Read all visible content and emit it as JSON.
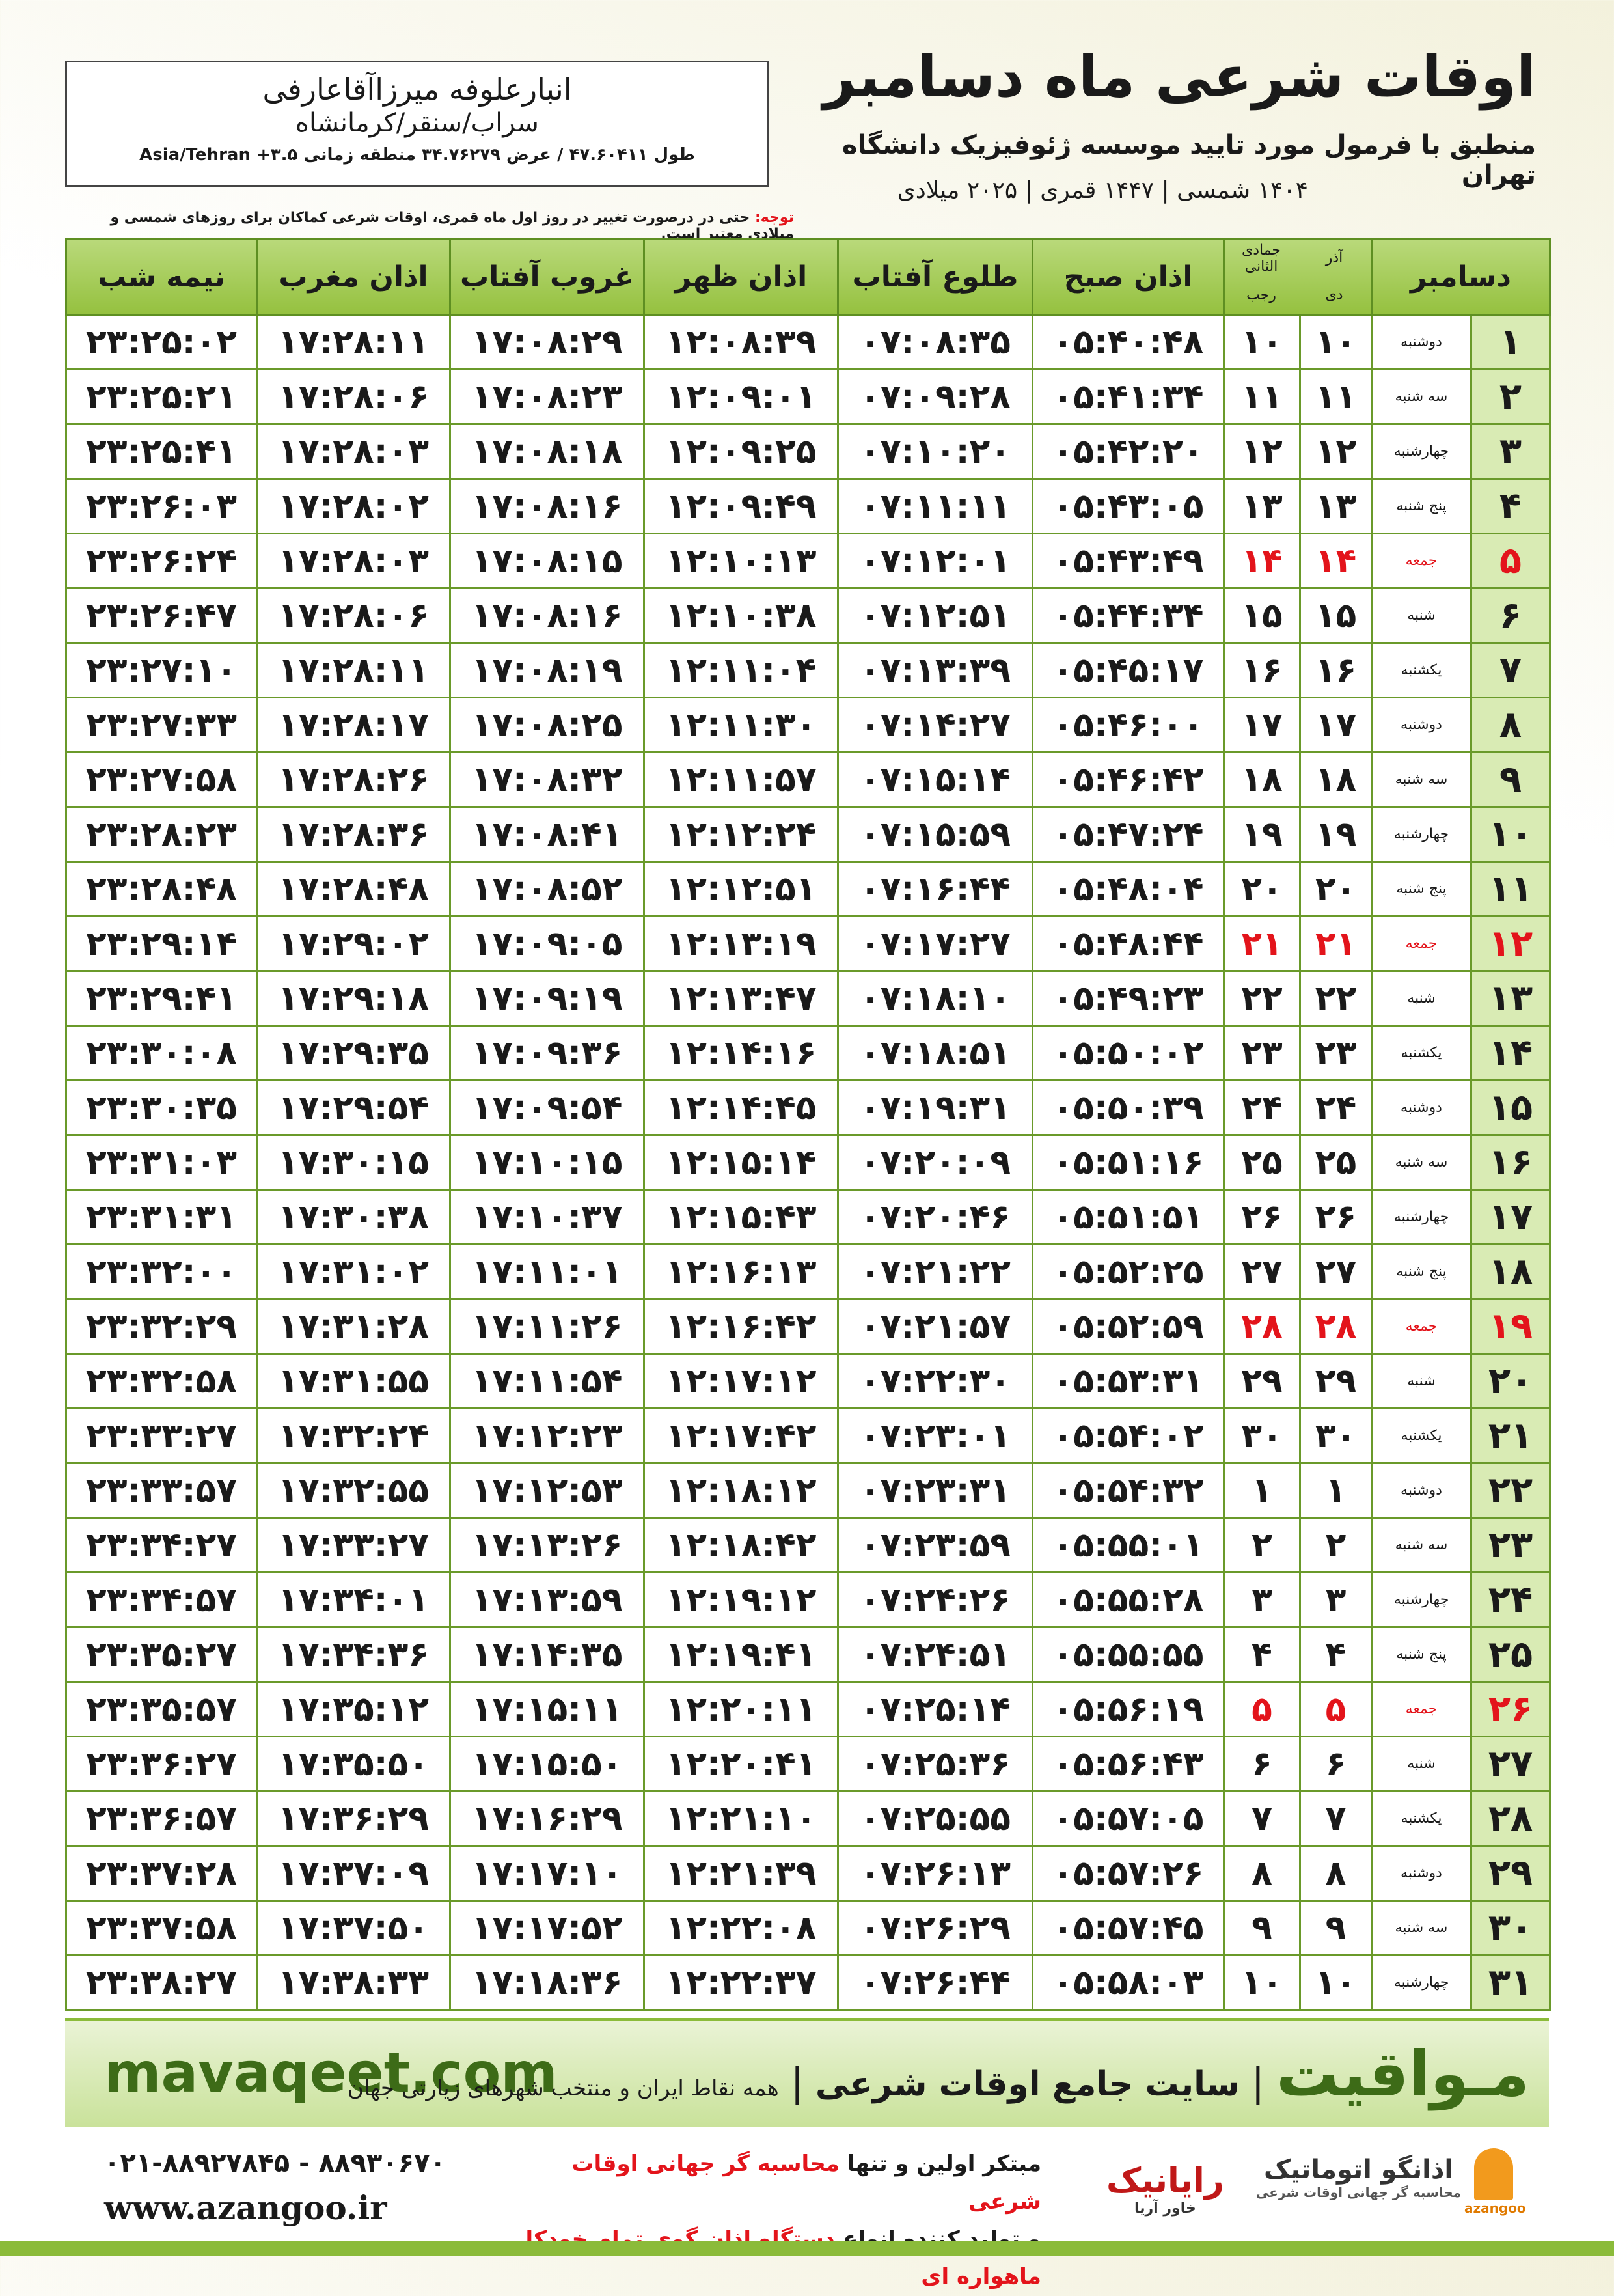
{
  "header": {
    "title": "اوقات شرعی ماه دسامبر",
    "subtitle": "منطبق با فرمول مورد تایید موسسه ژئوفیزیک دانشگاه تهران",
    "years": "۱۴۰۴ شمسی | ۱۴۴۷ قمری | ۲۰۲۵ میلادی",
    "location": {
      "name": "انبارعلوفه میرزاآقاعارفی",
      "region": "سراب/سنقر/کرمانشاه",
      "coordinates": "طول ۴۷.۶۰۴۱۱ / عرض ۳۴.۷۶۲۷۹ منطقه زمانی Asia/Tehran +۳.۵"
    },
    "note_label": "توجه:",
    "note": "حتی در درصورت تغییر در روز اول ماه قمری، اوقات شرعی کماکان برای روزهای شمسی و میلادی معتبر است."
  },
  "table": {
    "headers": [
      "دسامبر",
      "اذان صبح",
      "طلوع آفتاب",
      "اذان ظهر",
      "غروب آفتاب",
      "اذان مغرب",
      "نیمه شب"
    ],
    "month_headers": [
      [
        "آذر",
        "دی"
      ],
      [
        "جمادی الثانی",
        "رجب"
      ]
    ],
    "rows": [
      {
        "cells": [
          "۱",
          "دوشنبه",
          "۱۰",
          "۱۰",
          "۰۵:۴۰:۴۸",
          "۰۷:۰۸:۳۵",
          "۱۲:۰۸:۳۹",
          "۱۷:۰۸:۲۹",
          "۱۷:۲۸:۱۱",
          "۲۳:۲۵:۰۲"
        ]
      },
      {
        "cells": [
          "۲",
          "سه شنبه",
          "۱۱",
          "۱۱",
          "۰۵:۴۱:۳۴",
          "۰۷:۰۹:۲۸",
          "۱۲:۰۹:۰۱",
          "۱۷:۰۸:۲۳",
          "۱۷:۲۸:۰۶",
          "۲۳:۲۵:۲۱"
        ]
      },
      {
        "cells": [
          "۳",
          "چهارشنبه",
          "۱۲",
          "۱۲",
          "۰۵:۴۲:۲۰",
          "۰۷:۱۰:۲۰",
          "۱۲:۰۹:۲۵",
          "۱۷:۰۸:۱۸",
          "۱۷:۲۸:۰۳",
          "۲۳:۲۵:۴۱"
        ]
      },
      {
        "cells": [
          "۴",
          "پنج شنبه",
          "۱۳",
          "۱۳",
          "۰۵:۴۳:۰۵",
          "۰۷:۱۱:۱۱",
          "۱۲:۰۹:۴۹",
          "۱۷:۰۸:۱۶",
          "۱۷:۲۸:۰۲",
          "۲۳:۲۶:۰۳"
        ]
      },
      {
        "cells": [
          "۵",
          "جمعه",
          "۱۴",
          "۱۴",
          "۰۵:۴۳:۴۹",
          "۰۷:۱۲:۰۱",
          "۱۲:۱۰:۱۳",
          "۱۷:۰۸:۱۵",
          "۱۷:۲۸:۰۳",
          "۲۳:۲۶:۲۴"
        ],
        "color": "#e3141b"
      },
      {
        "cells": [
          "۶",
          "شنبه",
          "۱۵",
          "۱۵",
          "۰۵:۴۴:۳۴",
          "۰۷:۱۲:۵۱",
          "۱۲:۱۰:۳۸",
          "۱۷:۰۸:۱۶",
          "۱۷:۲۸:۰۶",
          "۲۳:۲۶:۴۷"
        ]
      },
      {
        "cells": [
          "۷",
          "یکشنبه",
          "۱۶",
          "۱۶",
          "۰۵:۴۵:۱۷",
          "۰۷:۱۳:۳۹",
          "۱۲:۱۱:۰۴",
          "۱۷:۰۸:۱۹",
          "۱۷:۲۸:۱۱",
          "۲۳:۲۷:۱۰"
        ]
      },
      {
        "cells": [
          "۸",
          "دوشنبه",
          "۱۷",
          "۱۷",
          "۰۵:۴۶:۰۰",
          "۰۷:۱۴:۲۷",
          "۱۲:۱۱:۳۰",
          "۱۷:۰۸:۲۵",
          "۱۷:۲۸:۱۷",
          "۲۳:۲۷:۳۳"
        ]
      },
      {
        "cells": [
          "۹",
          "سه شنبه",
          "۱۸",
          "۱۸",
          "۰۵:۴۶:۴۲",
          "۰۷:۱۵:۱۴",
          "۱۲:۱۱:۵۷",
          "۱۷:۰۸:۳۲",
          "۱۷:۲۸:۲۶",
          "۲۳:۲۷:۵۸"
        ]
      },
      {
        "cells": [
          "۱۰",
          "چهارشنبه",
          "۱۹",
          "۱۹",
          "۰۵:۴۷:۲۴",
          "۰۷:۱۵:۵۹",
          "۱۲:۱۲:۲۴",
          "۱۷:۰۸:۴۱",
          "۱۷:۲۸:۳۶",
          "۲۳:۲۸:۲۳"
        ]
      },
      {
        "cells": [
          "۱۱",
          "پنج شنبه",
          "۲۰",
          "۲۰",
          "۰۵:۴۸:۰۴",
          "۰۷:۱۶:۴۴",
          "۱۲:۱۲:۵۱",
          "۱۷:۰۸:۵۲",
          "۱۷:۲۸:۴۸",
          "۲۳:۲۸:۴۸"
        ]
      },
      {
        "cells": [
          "۱۲",
          "جمعه",
          "۲۱",
          "۲۱",
          "۰۵:۴۸:۴۴",
          "۰۷:۱۷:۲۷",
          "۱۲:۱۳:۱۹",
          "۱۷:۰۹:۰۵",
          "۱۷:۲۹:۰۲",
          "۲۳:۲۹:۱۴"
        ],
        "color": "#e3141b"
      },
      {
        "cells": [
          "۱۳",
          "شنبه",
          "۲۲",
          "۲۲",
          "۰۵:۴۹:۲۳",
          "۰۷:۱۸:۱۰",
          "۱۲:۱۳:۴۷",
          "۱۷:۰۹:۱۹",
          "۱۷:۲۹:۱۸",
          "۲۳:۲۹:۴۱"
        ]
      },
      {
        "cells": [
          "۱۴",
          "یکشنبه",
          "۲۳",
          "۲۳",
          "۰۵:۵۰:۰۲",
          "۰۷:۱۸:۵۱",
          "۱۲:۱۴:۱۶",
          "۱۷:۰۹:۳۶",
          "۱۷:۲۹:۳۵",
          "۲۳:۳۰:۰۸"
        ]
      },
      {
        "cells": [
          "۱۵",
          "دوشنبه",
          "۲۴",
          "۲۴",
          "۰۵:۵۰:۳۹",
          "۰۷:۱۹:۳۱",
          "۱۲:۱۴:۴۵",
          "۱۷:۰۹:۵۴",
          "۱۷:۲۹:۵۴",
          "۲۳:۳۰:۳۵"
        ]
      },
      {
        "cells": [
          "۱۶",
          "سه شنبه",
          "۲۵",
          "۲۵",
          "۰۵:۵۱:۱۶",
          "۰۷:۲۰:۰۹",
          "۱۲:۱۵:۱۴",
          "۱۷:۱۰:۱۵",
          "۱۷:۳۰:۱۵",
          "۲۳:۳۱:۰۳"
        ]
      },
      {
        "cells": [
          "۱۷",
          "چهارشنبه",
          "۲۶",
          "۲۶",
          "۰۵:۵۱:۵۱",
          "۰۷:۲۰:۴۶",
          "۱۲:۱۵:۴۳",
          "۱۷:۱۰:۳۷",
          "۱۷:۳۰:۳۸",
          "۲۳:۳۱:۳۱"
        ]
      },
      {
        "cells": [
          "۱۸",
          "پنج شنبه",
          "۲۷",
          "۲۷",
          "۰۵:۵۲:۲۵",
          "۰۷:۲۱:۲۲",
          "۱۲:۱۶:۱۳",
          "۱۷:۱۱:۰۱",
          "۱۷:۳۱:۰۲",
          "۲۳:۳۲:۰۰"
        ]
      },
      {
        "cells": [
          "۱۹",
          "جمعه",
          "۲۸",
          "۲۸",
          "۰۵:۵۲:۵۹",
          "۰۷:۲۱:۵۷",
          "۱۲:۱۶:۴۲",
          "۱۷:۱۱:۲۶",
          "۱۷:۳۱:۲۸",
          "۲۳:۳۲:۲۹"
        ],
        "color": "#e3141b"
      },
      {
        "cells": [
          "۲۰",
          "شنبه",
          "۲۹",
          "۲۹",
          "۰۵:۵۳:۳۱",
          "۰۷:۲۲:۳۰",
          "۱۲:۱۷:۱۲",
          "۱۷:۱۱:۵۴",
          "۱۷:۳۱:۵۵",
          "۲۳:۳۲:۵۸"
        ]
      },
      {
        "cells": [
          "۲۱",
          "یکشنبه",
          "۳۰",
          "۳۰",
          "۰۵:۵۴:۰۲",
          "۰۷:۲۳:۰۱",
          "۱۲:۱۷:۴۲",
          "۱۷:۱۲:۲۳",
          "۱۷:۳۲:۲۴",
          "۲۳:۳۳:۲۷"
        ]
      },
      {
        "cells": [
          "۲۲",
          "دوشنبه",
          "۱",
          "۱",
          "۰۵:۵۴:۳۲",
          "۰۷:۲۳:۳۱",
          "۱۲:۱۸:۱۲",
          "۱۷:۱۲:۵۳",
          "۱۷:۳۲:۵۵",
          "۲۳:۳۳:۵۷"
        ]
      },
      {
        "cells": [
          "۲۳",
          "سه شنبه",
          "۲",
          "۲",
          "۰۵:۵۵:۰۱",
          "۰۷:۲۳:۵۹",
          "۱۲:۱۸:۴۲",
          "۱۷:۱۳:۲۶",
          "۱۷:۳۳:۲۷",
          "۲۳:۳۴:۲۷"
        ]
      },
      {
        "cells": [
          "۲۴",
          "چهارشنبه",
          "۳",
          "۳",
          "۰۵:۵۵:۲۸",
          "۰۷:۲۴:۲۶",
          "۱۲:۱۹:۱۲",
          "۱۷:۱۳:۵۹",
          "۱۷:۳۴:۰۱",
          "۲۳:۳۴:۵۷"
        ]
      },
      {
        "cells": [
          "۲۵",
          "پنج شنبه",
          "۴",
          "۴",
          "۰۵:۵۵:۵۵",
          "۰۷:۲۴:۵۱",
          "۱۲:۱۹:۴۱",
          "۱۷:۱۴:۳۵",
          "۱۷:۳۴:۳۶",
          "۲۳:۳۵:۲۷"
        ]
      },
      {
        "cells": [
          "۲۶",
          "جمعه",
          "۵",
          "۵",
          "۰۵:۵۶:۱۹",
          "۰۷:۲۵:۱۴",
          "۱۲:۲۰:۱۱",
          "۱۷:۱۵:۱۱",
          "۱۷:۳۵:۱۲",
          "۲۳:۳۵:۵۷"
        ],
        "color": "#e3141b"
      },
      {
        "cells": [
          "۲۷",
          "شنبه",
          "۶",
          "۶",
          "۰۵:۵۶:۴۳",
          "۰۷:۲۵:۳۶",
          "۱۲:۲۰:۴۱",
          "۱۷:۱۵:۵۰",
          "۱۷:۳۵:۵۰",
          "۲۳:۳۶:۲۷"
        ]
      },
      {
        "cells": [
          "۲۸",
          "یکشنبه",
          "۷",
          "۷",
          "۰۵:۵۷:۰۵",
          "۰۷:۲۵:۵۵",
          "۱۲:۲۱:۱۰",
          "۱۷:۱۶:۲۹",
          "۱۷:۳۶:۲۹",
          "۲۳:۳۶:۵۷"
        ]
      },
      {
        "cells": [
          "۲۹",
          "دوشنبه",
          "۸",
          "۸",
          "۰۵:۵۷:۲۶",
          "۰۷:۲۶:۱۳",
          "۱۲:۲۱:۳۹",
          "۱۷:۱۷:۱۰",
          "۱۷:۳۷:۰۹",
          "۲۳:۳۷:۲۸"
        ]
      },
      {
        "cells": [
          "۳۰",
          "سه شنبه",
          "۹",
          "۹",
          "۰۵:۵۷:۴۵",
          "۰۷:۲۶:۲۹",
          "۱۲:۲۲:۰۸",
          "۱۷:۱۷:۵۲",
          "۱۷:۳۷:۵۰",
          "۲۳:۳۷:۵۸"
        ]
      },
      {
        "cells": [
          "۳۱",
          "چهارشنبه",
          "۱۰",
          "۱۰",
          "۰۵:۵۸:۰۳",
          "۰۷:۲۶:۴۴",
          "۱۲:۲۲:۳۷",
          "۱۷:۱۸:۳۶",
          "۱۷:۳۸:۳۳",
          "۲۳:۳۸:۲۷"
        ]
      }
    ]
  },
  "footer": {
    "site": "mavaqeet.com",
    "brand": "مـواقیت",
    "tagline": "سایت جامع اوقات شرعی",
    "scope": "همه نقاط ایران و منتخب شهرهای زیارتی جهان",
    "phones": "۰۲۱-۸۸۹۲۷۸۴۵ - ۸۸۹۳۰۶۷۰",
    "website": "www.azangoo.ir",
    "line1_prefix": "مبتکر اولین و تنها",
    "line1_highlight": "محاسبه گر جهانی اوقات شرعی",
    "line2_prefix": "و تولید کننده انواع",
    "line2_highlight": "دستگاه اذان گوی تمام خودکار ماهواره ای",
    "logo1": "رایانیک",
    "logo1_sub": "خاور آریا",
    "logo2": "اذانگو اتوماتیک",
    "logo2_sub": "محاسبه گر جهانی اوقات شرعی",
    "logo3": "azangoo"
  }
}
